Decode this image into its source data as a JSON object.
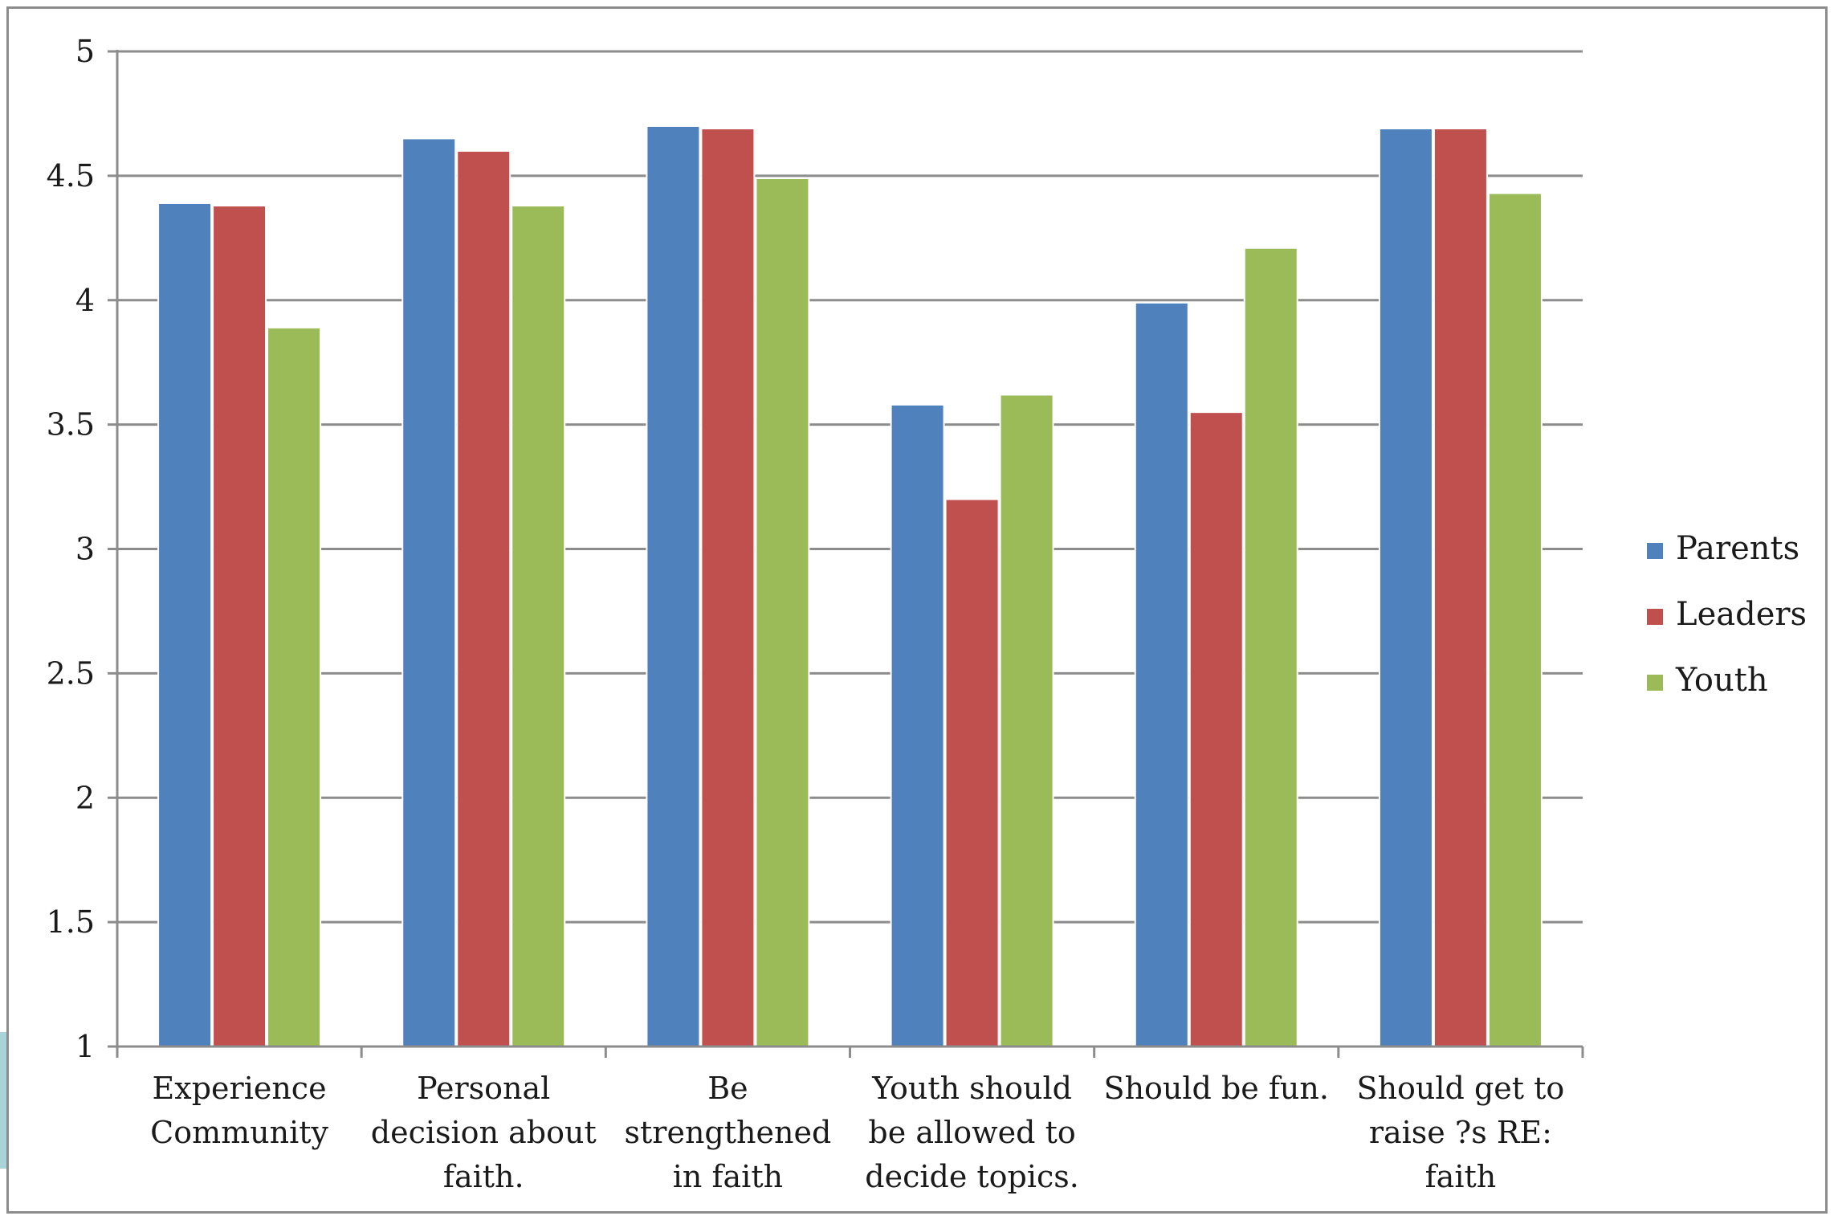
{
  "chart_data": {
    "type": "bar",
    "title": "",
    "xlabel": "",
    "ylabel": "",
    "ylim": [
      1,
      5
    ],
    "yticks": [
      1,
      1.5,
      2,
      2.5,
      3,
      3.5,
      4,
      4.5,
      5
    ],
    "ytick_labels": [
      "1",
      "1.5",
      "2",
      "2.5",
      "3",
      "3.5",
      "4",
      "4.5",
      "5"
    ],
    "grid": true,
    "legend_position": "right",
    "categories": [
      [
        "Experience",
        "Community"
      ],
      [
        "Personal",
        "decision about",
        "faith."
      ],
      [
        "Be",
        "strengthened",
        "in faith"
      ],
      [
        "Youth should",
        "be allowed to",
        "decide topics."
      ],
      [
        "Should be fun."
      ],
      [
        "Should get to",
        "raise ?s RE:",
        "faith"
      ]
    ],
    "series": [
      {
        "name": "Parents",
        "color": "#4f81bd",
        "values": [
          4.39,
          4.65,
          4.7,
          3.58,
          3.99,
          4.69
        ]
      },
      {
        "name": "Leaders",
        "color": "#c0504d",
        "values": [
          4.38,
          4.6,
          4.69,
          3.2,
          3.55,
          4.69
        ]
      },
      {
        "name": "Youth",
        "color": "#9bbb59",
        "values": [
          3.89,
          4.38,
          4.49,
          3.62,
          4.21,
          4.43
        ]
      }
    ]
  }
}
